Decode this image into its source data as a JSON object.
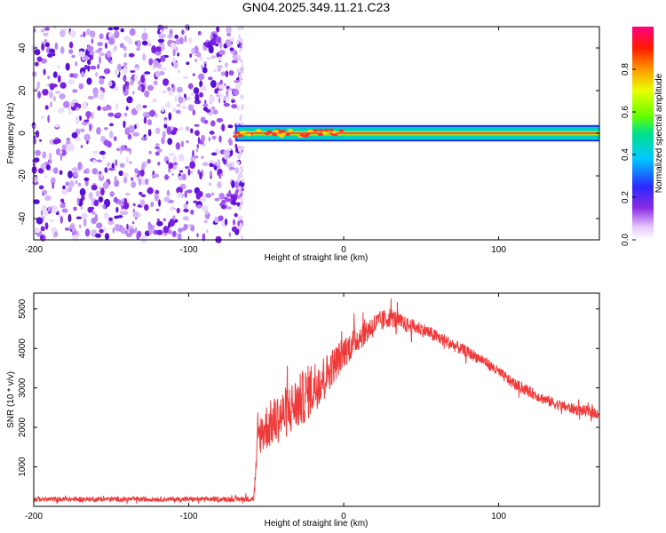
{
  "title": "GN04.2025.349.11.21.C23",
  "colors": {
    "red": "#ef3a3a",
    "axis": "#000000"
  },
  "chart_data": [
    {
      "type": "heatmap",
      "name": "spectrogram",
      "xlabel": "Height of straight line (km)",
      "ylabel": "Frequency (Hz)",
      "xlim": [
        -200,
        165
      ],
      "ylim": [
        -50,
        50
      ],
      "x_ticks": [
        -200,
        -100,
        0,
        100
      ],
      "y_ticks": [
        -40,
        -20,
        0,
        20,
        40
      ],
      "noise_region_km": [
        -200,
        -65
      ],
      "signal_band_hz": [
        -3,
        3
      ],
      "signal_start_km": -70,
      "colorbar": {
        "label": "Normalized spectral amplitude",
        "range": [
          0,
          1
        ],
        "ticks": [
          0.0,
          0.2,
          0.4,
          0.6,
          0.8
        ],
        "tick_labels": [
          "0.0",
          "0.2",
          "0.4",
          "0.6",
          "0.8"
        ]
      }
    },
    {
      "type": "line",
      "name": "snr",
      "xlabel": "Height of straight line (km)",
      "ylabel": "SNR (10 * v/v)",
      "xlim": [
        -200,
        165
      ],
      "ylim": [
        0,
        5400
      ],
      "x_ticks": [
        -200,
        -100,
        0,
        100
      ],
      "y_ticks": [
        1000,
        2000,
        3000,
        4000,
        5000
      ],
      "series": [
        {
          "name": "SNR",
          "color": "#ef3a3a",
          "x": [
            -200,
            -150,
            -100,
            -70,
            -58,
            -55,
            -50,
            -40,
            -30,
            -20,
            -10,
            0,
            10,
            20,
            30,
            40,
            50,
            60,
            70,
            80,
            90,
            100,
            110,
            120,
            130,
            140,
            150,
            165
          ],
          "y": [
            180,
            180,
            180,
            180,
            200,
            1800,
            2000,
            2300,
            2600,
            3000,
            3400,
            3900,
            4300,
            4600,
            4800,
            4600,
            4500,
            4300,
            4100,
            3900,
            3700,
            3400,
            3100,
            2900,
            2700,
            2550,
            2450,
            2350
          ],
          "noise_amp": [
            60,
            60,
            60,
            60,
            80,
            500,
            600,
            650,
            700,
            700,
            500,
            400,
            350,
            300,
            250,
            200,
            180,
            170,
            160,
            150,
            140,
            140,
            140,
            140,
            140,
            140,
            140,
            140
          ]
        }
      ]
    }
  ]
}
